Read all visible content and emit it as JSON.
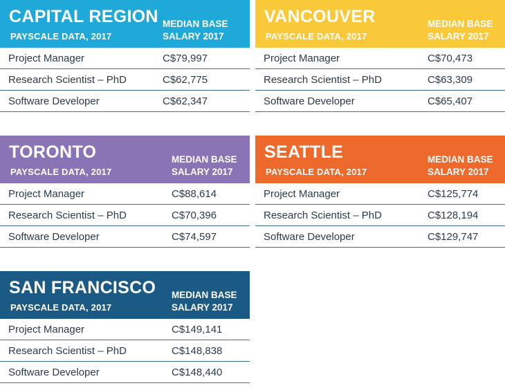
{
  "colors": {
    "capital_region": "#1fa9d8",
    "vancouver": "#f9c93a",
    "toronto": "#8b74b6",
    "seattle": "#ee6a2c",
    "san_francisco": "#1c5a86",
    "divider": "#3b6f93",
    "text": "#2b3a4a"
  },
  "chart_data": {
    "type": "table",
    "tables": [
      {
        "city": "CAPITAL REGION",
        "source": "PAYSCALE DATA, 2017",
        "column_header": [
          "MEDIAN BASE",
          "SALARY 2017"
        ],
        "rows": [
          {
            "job": "Project Manager",
            "salary": "C$79,997",
            "value": 79997
          },
          {
            "job": "Research Scientist – PhD",
            "salary": "C$62,775",
            "value": 62775
          },
          {
            "job": "Software Developer",
            "salary": "C$62,347",
            "value": 62347
          }
        ]
      },
      {
        "city": "VANCOUVER",
        "source": "PAYSCALE DATA, 2017",
        "column_header": [
          "MEDIAN BASE",
          "SALARY 2017"
        ],
        "rows": [
          {
            "job": "Project Manager",
            "salary": "C$70,473",
            "value": 70473
          },
          {
            "job": "Research Scientist – PhD",
            "salary": "C$63,309",
            "value": 63309
          },
          {
            "job": "Software Developer",
            "salary": "C$65,407",
            "value": 65407
          }
        ]
      },
      {
        "city": "TORONTO",
        "source": "PAYSCALE DATA, 2017",
        "column_header": [
          "MEDIAN BASE",
          "SALARY 2017"
        ],
        "rows": [
          {
            "job": "Project Manager",
            "salary": "C$88,614",
            "value": 88614
          },
          {
            "job": "Research Scientist – PhD",
            "salary": "C$70,396",
            "value": 70396
          },
          {
            "job": "Software Developer",
            "salary": "C$74,597",
            "value": 74597
          }
        ]
      },
      {
        "city": "SEATTLE",
        "source": "PAYSCALE DATA, 2017",
        "column_header": [
          "MEDIAN BASE",
          "SALARY 2017"
        ],
        "rows": [
          {
            "job": "Project Manager",
            "salary": "C$125,774",
            "value": 125774
          },
          {
            "job": "Research Scientist – PhD",
            "salary": "C$128,194",
            "value": 128194
          },
          {
            "job": "Software Developer",
            "salary": "C$129,747",
            "value": 129747
          }
        ]
      },
      {
        "city": "SAN FRANCISCO",
        "source": "PAYSCALE DATA, 2017",
        "column_header": [
          "MEDIAN BASE",
          "SALARY 2017"
        ],
        "rows": [
          {
            "job": "Project Manager",
            "salary": "C$149,141",
            "value": 149141
          },
          {
            "job": "Research Scientist – PhD",
            "salary": "C$148,838",
            "value": 148838
          },
          {
            "job": "Software Developer",
            "salary": "C$148,440",
            "value": 148440
          }
        ]
      }
    ]
  }
}
